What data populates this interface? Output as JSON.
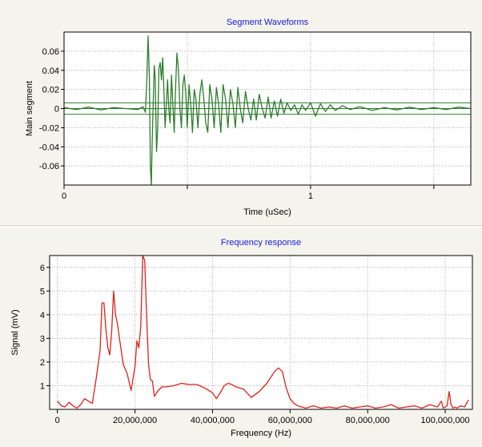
{
  "chart_data": [
    {
      "type": "line",
      "title": "Segment Waveforms",
      "xlabel": "Time (uSec)",
      "ylabel": "Main segment",
      "xlim": [
        0,
        1.65
      ],
      "ylim": [
        -0.08,
        0.08
      ],
      "x_ticks": [
        0,
        0.5,
        1,
        1.5
      ],
      "x_tick_labels": [
        "0",
        "",
        "1",
        ""
      ],
      "y_ticks": [
        0.06,
        0.04,
        0.02,
        0,
        -0.02,
        -0.04,
        -0.06
      ],
      "y_tick_labels": [
        "0.06",
        "0.04",
        "0.02",
        "0",
        "-0.02",
        "-0.04",
        "-0.06"
      ],
      "grid": true,
      "reference_lines": [
        0.006,
        0.0,
        -0.006
      ],
      "series": [
        {
          "color": "#2e7d2e",
          "x": [
            0.0,
            0.05,
            0.1,
            0.15,
            0.2,
            0.25,
            0.3,
            0.32,
            0.33,
            0.336,
            0.341,
            0.346,
            0.35,
            0.354,
            0.358,
            0.362,
            0.366,
            0.37,
            0.375,
            0.38,
            0.385,
            0.39,
            0.395,
            0.4,
            0.405,
            0.41,
            0.415,
            0.42,
            0.425,
            0.43,
            0.436,
            0.442,
            0.447,
            0.452,
            0.458,
            0.464,
            0.47,
            0.476,
            0.482,
            0.488,
            0.494,
            0.5,
            0.507,
            0.514,
            0.521,
            0.528,
            0.535,
            0.543,
            0.551,
            0.559,
            0.567,
            0.575,
            0.583,
            0.591,
            0.6,
            0.609,
            0.618,
            0.627,
            0.636,
            0.645,
            0.655,
            0.665,
            0.675,
            0.685,
            0.695,
            0.705,
            0.715,
            0.725,
            0.736,
            0.747,
            0.758,
            0.769,
            0.78,
            0.792,
            0.804,
            0.816,
            0.828,
            0.84,
            0.853,
            0.866,
            0.879,
            0.892,
            0.905,
            0.92,
            0.935,
            0.95,
            0.965,
            0.98,
            1.0,
            1.02,
            1.04,
            1.06,
            1.08,
            1.1,
            1.13,
            1.16,
            1.2,
            1.25,
            1.3,
            1.35,
            1.4,
            1.45,
            1.5,
            1.55,
            1.6,
            1.65
          ],
          "y": [
            0.001,
            -0.001,
            0.0015,
            -0.0015,
            0.001,
            0.0,
            -0.001,
            0.002,
            -0.004,
            0.03,
            0.076,
            0.035,
            -0.06,
            -0.08,
            -0.03,
            0.01,
            0.045,
            0.03,
            -0.045,
            -0.02,
            0.042,
            0.048,
            0.03,
            0.053,
            0.02,
            -0.02,
            0.005,
            0.03,
            0.0,
            -0.015,
            0.035,
            0.0,
            -0.025,
            0.02,
            0.058,
            0.04,
            0.0,
            -0.02,
            0.025,
            0.035,
            0.015,
            -0.02,
            0.025,
            0.005,
            -0.025,
            0.02,
            0.01,
            -0.02,
            0.015,
            0.03,
            0.01,
            -0.015,
            -0.025,
            0.025,
            0.01,
            -0.02,
            0.022,
            0.005,
            -0.025,
            0.025,
            0.01,
            -0.02,
            0.02,
            0.005,
            -0.02,
            0.022,
            0.0,
            -0.015,
            0.018,
            0.0,
            -0.012,
            0.01,
            -0.012,
            0.015,
            0.0,
            -0.01,
            0.012,
            -0.01,
            0.008,
            -0.008,
            0.01,
            -0.005,
            0.006,
            -0.002,
            0.004,
            -0.006,
            0.004,
            -0.002,
            0.006,
            -0.008,
            0.005,
            -0.003,
            0.004,
            -0.002,
            0.003,
            -0.001,
            0.002,
            -0.002,
            0.001,
            -0.0015,
            0.0015,
            -0.001,
            0.001,
            -0.001,
            0.0015,
            0.0
          ]
        }
      ]
    },
    {
      "type": "line",
      "title": "Frequency response",
      "xlabel": "Frequency (Hz)",
      "ylabel": "Signal (mV)",
      "xlim": [
        -2000000,
        107000000
      ],
      "ylim": [
        0,
        6.5
      ],
      "x_ticks": [
        0,
        20000000,
        40000000,
        60000000,
        80000000,
        100000000
      ],
      "x_tick_labels": [
        "0",
        "20,000,000",
        "40,000,000",
        "60,000,000",
        "80,000,000",
        "100,000,000"
      ],
      "y_ticks": [
        1,
        2,
        3,
        4,
        5,
        6
      ],
      "y_tick_labels": [
        "1",
        "2",
        "3",
        "4",
        "5",
        "6"
      ],
      "grid": true,
      "series": [
        {
          "color": "#e0201b",
          "x": [
            0,
            1000000,
            2000000,
            3000000,
            4000000,
            5000000,
            6000000,
            7000000,
            8000000,
            9000000,
            10000000,
            10500000,
            11000000,
            11500000,
            12000000,
            12500000,
            13000000,
            13500000,
            14000000,
            14500000,
            15000000,
            15500000,
            16000000,
            17000000,
            18000000,
            19000000,
            20000000,
            20500000,
            21000000,
            21500000,
            22000000,
            22500000,
            23000000,
            23500000,
            24000000,
            24500000,
            25000000,
            26000000,
            27000000,
            28000000,
            30000000,
            32000000,
            34000000,
            36000000,
            38000000,
            40000000,
            41000000,
            42000000,
            43000000,
            44000000,
            45000000,
            46000000,
            48000000,
            50000000,
            52000000,
            54000000,
            56000000,
            57000000,
            58000000,
            59000000,
            60000000,
            61000000,
            62000000,
            63000000,
            64000000,
            66000000,
            68000000,
            70000000,
            72000000,
            74000000,
            76000000,
            78000000,
            80000000,
            82000000,
            84000000,
            86000000,
            88000000,
            90000000,
            92000000,
            94000000,
            96000000,
            98000000,
            99000000,
            99500000,
            100000000,
            100500000,
            101000000,
            101500000,
            102000000,
            102500000,
            103000000,
            104000000,
            105000000,
            106000000
          ],
          "y": [
            0.35,
            0.15,
            0.1,
            0.3,
            0.15,
            0.05,
            0.2,
            0.45,
            0.35,
            0.25,
            1.3,
            1.9,
            2.5,
            4.5,
            4.5,
            3.4,
            2.6,
            2.3,
            3.3,
            5.0,
            4.0,
            3.6,
            3.0,
            1.9,
            1.5,
            0.8,
            1.8,
            2.9,
            2.6,
            3.5,
            6.5,
            6.3,
            4.0,
            1.9,
            1.25,
            1.2,
            0.55,
            0.8,
            0.95,
            0.95,
            1.0,
            1.1,
            1.05,
            1.05,
            0.9,
            0.7,
            0.45,
            0.7,
            1.0,
            1.1,
            1.05,
            0.95,
            0.85,
            0.5,
            0.75,
            1.1,
            1.6,
            1.75,
            1.6,
            0.9,
            0.45,
            0.25,
            0.15,
            0.1,
            0.05,
            0.15,
            0.05,
            0.1,
            0.05,
            0.15,
            0.05,
            0.1,
            0.15,
            0.05,
            0.1,
            0.2,
            0.05,
            0.1,
            0.15,
            0.05,
            0.2,
            0.1,
            0.35,
            0.05,
            0.1,
            0.15,
            0.75,
            0.2,
            0.05,
            0.1,
            0.05,
            0.15,
            0.1,
            0.4
          ]
        }
      ]
    }
  ]
}
